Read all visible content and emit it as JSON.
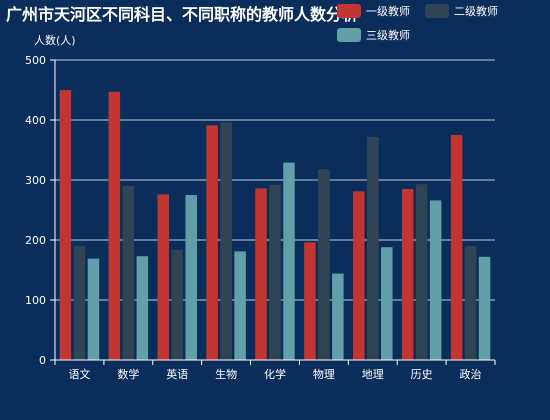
{
  "chart_data": {
    "type": "bar",
    "title": "广州市天河区不同科目、不同职称的教师人数分析",
    "ylabel": "人数(人)",
    "xlabel": "",
    "ylim": [
      0,
      500
    ],
    "yticks": [
      0,
      100,
      200,
      300,
      400,
      500
    ],
    "grid": true,
    "legend_position": "top-right",
    "categories": [
      "语文",
      "数学",
      "英语",
      "生物",
      "化学",
      "物理",
      "地理",
      "历史",
      "政治"
    ],
    "series": [
      {
        "name": "一级教师",
        "color": "#c23531",
        "values": [
          450,
          447,
          276,
          391,
          286,
          196,
          281,
          285,
          375
        ]
      },
      {
        "name": "二级教师",
        "color": "#2f4554",
        "values": [
          190,
          290,
          184,
          396,
          292,
          318,
          372,
          293,
          190
        ]
      },
      {
        "name": "三级教师",
        "color": "#61a0a8",
        "values": [
          169,
          173,
          275,
          181,
          329,
          144,
          188,
          266,
          172
        ]
      }
    ]
  }
}
